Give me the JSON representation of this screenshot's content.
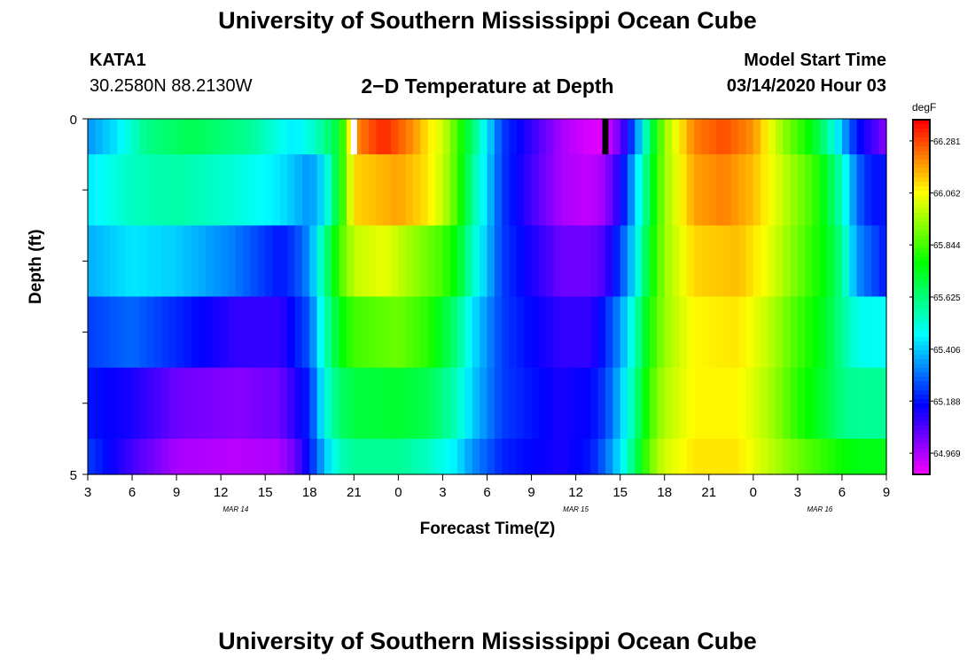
{
  "header": {
    "title": "University of Southern Mississippi Ocean Cube",
    "station": "KATA1",
    "coords": "30.2580N 88.2130W",
    "plot_title": "2−D Temperature at Depth",
    "model_label": "Model Start Time",
    "model_time": "03/14/2020 Hour 03"
  },
  "footer": {
    "title": "University of Southern Mississippi Ocean Cube"
  },
  "chart_data": {
    "type": "heatmap",
    "xlabel": "Forecast Time(Z)",
    "ylabel": "Depth (ft)",
    "colorbar_label": "degF",
    "x_hours": [
      0,
      54
    ],
    "x_tick_labels": [
      "3",
      "6",
      "9",
      "12",
      "15",
      "18",
      "21",
      "0",
      "3",
      "6",
      "9",
      "12",
      "15",
      "18",
      "21",
      "0",
      "3",
      "6",
      "9"
    ],
    "date_labels": [
      {
        "text": "MAR 14",
        "hour": 10
      },
      {
        "text": "MAR 15",
        "hour": 33
      },
      {
        "text": "MAR 16",
        "hour": 49.5
      }
    ],
    "y_range": [
      0,
      5
    ],
    "y_tick_labels": [
      "0",
      "5"
    ],
    "depth_bands": [
      0,
      0.5,
      1.5,
      2.5,
      3.5,
      4.5,
      5
    ],
    "colorbar_ticks": [
      66.281,
      66.062,
      65.844,
      65.625,
      65.406,
      65.188,
      64.969
    ],
    "color_range": [
      64.88,
      66.37
    ],
    "keypoints": [
      [
        [
          0,
          65.35
        ],
        [
          2,
          65.45
        ],
        [
          4,
          65.62
        ],
        [
          7,
          65.68
        ],
        [
          11,
          65.6
        ],
        [
          14,
          65.45
        ],
        [
          15.5,
          65.55
        ],
        [
          17,
          65.72
        ],
        [
          18,
          66.2
        ],
        [
          20,
          66.33
        ],
        [
          22,
          66.2
        ],
        [
          23,
          66.1
        ],
        [
          24,
          66.02
        ],
        [
          25,
          65.85
        ],
        [
          26,
          65.65
        ],
        [
          28,
          65.25
        ],
        [
          30,
          65.12
        ],
        [
          32,
          64.98
        ],
        [
          34,
          64.92
        ],
        [
          35,
          64.92
        ],
        [
          36,
          65.05
        ],
        [
          37,
          65.3
        ],
        [
          38,
          65.65
        ],
        [
          39,
          65.95
        ],
        [
          41,
          66.22
        ],
        [
          43,
          66.28
        ],
        [
          45,
          66.2
        ],
        [
          47,
          65.95
        ],
        [
          49,
          65.75
        ],
        [
          50,
          65.6
        ],
        [
          51,
          65.4
        ],
        [
          52,
          65.2
        ],
        [
          54,
          65.02
        ]
      ],
      [
        [
          0,
          65.45
        ],
        [
          3,
          65.55
        ],
        [
          6,
          65.58
        ],
        [
          10,
          65.52
        ],
        [
          13,
          65.45
        ],
        [
          15,
          65.35
        ],
        [
          16,
          65.45
        ],
        [
          17,
          65.75
        ],
        [
          18,
          66.12
        ],
        [
          21,
          66.18
        ],
        [
          23,
          66.1
        ],
        [
          24,
          66.0
        ],
        [
          25,
          65.85
        ],
        [
          26,
          65.6
        ],
        [
          28,
          65.25
        ],
        [
          30,
          65.1
        ],
        [
          32,
          64.98
        ],
        [
          34,
          64.95
        ],
        [
          35,
          65.0
        ],
        [
          36,
          65.15
        ],
        [
          37,
          65.4
        ],
        [
          38,
          65.7
        ],
        [
          39,
          65.95
        ],
        [
          41,
          66.18
        ],
        [
          43,
          66.22
        ],
        [
          45,
          66.15
        ],
        [
          47,
          66.0
        ],
        [
          49,
          65.85
        ],
        [
          50,
          65.72
        ],
        [
          51,
          65.55
        ],
        [
          52,
          65.3
        ],
        [
          53,
          65.2
        ],
        [
          54,
          65.2
        ]
      ],
      [
        [
          0,
          65.38
        ],
        [
          3,
          65.45
        ],
        [
          6,
          65.42
        ],
        [
          10,
          65.32
        ],
        [
          13,
          65.2
        ],
        [
          14,
          65.25
        ],
        [
          15,
          65.35
        ],
        [
          16,
          65.6
        ],
        [
          17,
          65.85
        ],
        [
          18,
          66.0
        ],
        [
          20,
          66.05
        ],
        [
          22,
          65.95
        ],
        [
          24,
          65.85
        ],
        [
          25,
          65.75
        ],
        [
          26,
          65.55
        ],
        [
          28,
          65.25
        ],
        [
          30,
          65.15
        ],
        [
          32,
          65.05
        ],
        [
          34,
          65.05
        ],
        [
          35,
          65.1
        ],
        [
          36,
          65.25
        ],
        [
          37,
          65.45
        ],
        [
          38,
          65.75
        ],
        [
          39,
          65.95
        ],
        [
          41,
          66.12
        ],
        [
          44,
          66.15
        ],
        [
          46,
          66.05
        ],
        [
          48,
          65.9
        ],
        [
          50,
          65.75
        ],
        [
          51,
          65.6
        ],
        [
          52,
          65.35
        ],
        [
          54,
          65.2
        ]
      ],
      [
        [
          0,
          65.25
        ],
        [
          3,
          65.3
        ],
        [
          6,
          65.22
        ],
        [
          10,
          65.12
        ],
        [
          13,
          65.12
        ],
        [
          15,
          65.28
        ],
        [
          16,
          65.55
        ],
        [
          17,
          65.75
        ],
        [
          18,
          65.85
        ],
        [
          21,
          65.9
        ],
        [
          23,
          65.82
        ],
        [
          24,
          65.72
        ],
        [
          25,
          65.62
        ],
        [
          26,
          65.45
        ],
        [
          28,
          65.25
        ],
        [
          30,
          65.18
        ],
        [
          32,
          65.12
        ],
        [
          34,
          65.12
        ],
        [
          35,
          65.22
        ],
        [
          36,
          65.35
        ],
        [
          37,
          65.55
        ],
        [
          38,
          65.8
        ],
        [
          39,
          65.95
        ],
        [
          41,
          66.08
        ],
        [
          44,
          66.1
        ],
        [
          46,
          66.0
        ],
        [
          48,
          65.85
        ],
        [
          50,
          65.72
        ],
        [
          51,
          65.6
        ],
        [
          52,
          65.5
        ],
        [
          54,
          65.48
        ]
      ],
      [
        [
          0,
          65.2
        ],
        [
          3,
          65.15
        ],
        [
          6,
          65.05
        ],
        [
          10,
          65.02
        ],
        [
          13,
          65.05
        ],
        [
          15,
          65.22
        ],
        [
          16,
          65.5
        ],
        [
          17,
          65.65
        ],
        [
          18,
          65.7
        ],
        [
          21,
          65.72
        ],
        [
          23,
          65.68
        ],
        [
          24,
          65.62
        ],
        [
          25,
          65.55
        ],
        [
          26,
          65.42
        ],
        [
          28,
          65.25
        ],
        [
          30,
          65.2
        ],
        [
          32,
          65.15
        ],
        [
          34,
          65.18
        ],
        [
          35,
          65.25
        ],
        [
          36,
          65.4
        ],
        [
          37,
          65.6
        ],
        [
          38,
          65.85
        ],
        [
          39,
          65.98
        ],
        [
          41,
          66.08
        ],
        [
          44,
          66.08
        ],
        [
          46,
          65.98
        ],
        [
          48,
          65.82
        ],
        [
          50,
          65.7
        ],
        [
          51,
          65.62
        ],
        [
          52,
          65.6
        ],
        [
          54,
          65.6
        ]
      ],
      [
        [
          0,
          65.25
        ],
        [
          3,
          65.1
        ],
        [
          6,
          64.98
        ],
        [
          10,
          64.96
        ],
        [
          13,
          64.98
        ],
        [
          14,
          65.05
        ],
        [
          15,
          65.2
        ],
        [
          16,
          65.4
        ],
        [
          17,
          65.55
        ],
        [
          18,
          65.6
        ],
        [
          21,
          65.6
        ],
        [
          23,
          65.55
        ],
        [
          24,
          65.5
        ],
        [
          25,
          65.45
        ],
        [
          26,
          65.35
        ],
        [
          28,
          65.22
        ],
        [
          30,
          65.18
        ],
        [
          32,
          65.15
        ],
        [
          34,
          65.2
        ],
        [
          35,
          65.3
        ],
        [
          36,
          65.45
        ],
        [
          37,
          65.65
        ],
        [
          38,
          65.9
        ],
        [
          39,
          66.02
        ],
        [
          41,
          66.1
        ],
        [
          44,
          66.1
        ],
        [
          46,
          66.0
        ],
        [
          48,
          65.9
        ],
        [
          50,
          65.82
        ],
        [
          51,
          65.78
        ],
        [
          52,
          65.75
        ],
        [
          54,
          65.75
        ]
      ]
    ],
    "markers": [
      {
        "hour": 18,
        "color": "#ffffff"
      },
      {
        "hour": 35,
        "color": "#000000"
      }
    ]
  }
}
